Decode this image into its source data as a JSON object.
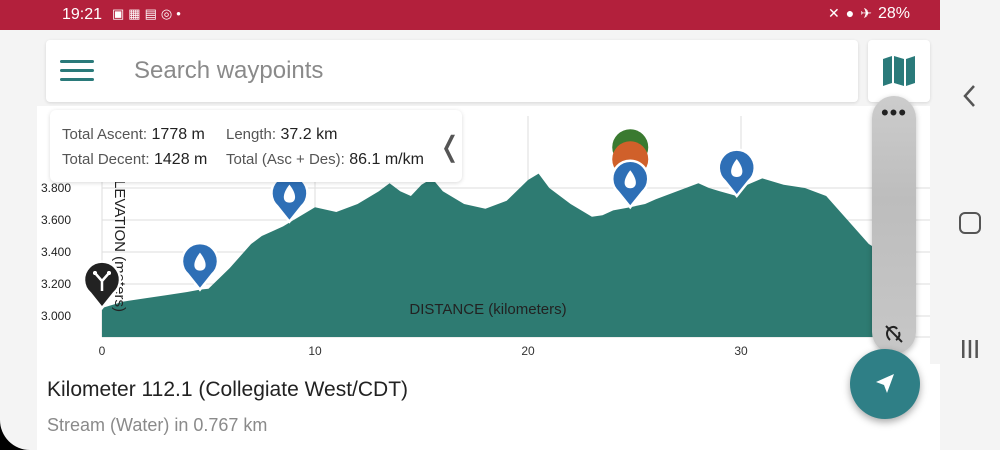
{
  "status_bar": {
    "time": "19:21",
    "left_icons": [
      "photo-icon",
      "grid-icon",
      "chat-icon",
      "whatsapp-icon",
      "dot-icon"
    ],
    "right_icons": [
      "mute-icon",
      "location-icon",
      "airplane-icon"
    ],
    "battery": "28%"
  },
  "search": {
    "placeholder": "Search waypoints"
  },
  "stats": {
    "ascent_label": "Total Ascent:",
    "ascent_value": "1778 m",
    "length_label": "Length:",
    "length_value": "37.2 km",
    "descent_label": "Total Decent:",
    "descent_value": "1428 m",
    "total_label": "Total (Asc + Des):",
    "total_value": "86.1 m/km"
  },
  "waypoint": {
    "title": "Kilometer 112.1 (Collegiate West/CDT)",
    "subtitle": "Stream (Water) in 0.767 km"
  },
  "colors": {
    "status_bar": "#b3203c",
    "accent": "#2a7a7a",
    "profile_fill": "#2e7b72",
    "water_pin": "#2e6fb6",
    "junction_pin": "#222222",
    "green_marker": "#3a7a30",
    "orange_marker": "#d0602a"
  },
  "chart_data": {
    "type": "area",
    "xlabel": "DISTANCE (kilometers)",
    "ylabel": "ELEVATION (meters)",
    "x_ticks": [
      0,
      10,
      20,
      30
    ],
    "y_ticks": [
      "3.000",
      "3.200",
      "3.400",
      "3.600",
      "3.800"
    ],
    "xlim": [
      0,
      37.2
    ],
    "ylim": [
      2870,
      4350
    ],
    "series": [
      {
        "x": [
          0,
          1,
          2,
          3,
          4,
          4.6,
          5,
          6,
          7,
          7.5,
          8,
          8.5,
          9,
          10,
          11,
          12,
          13,
          13.5,
          14,
          14.5,
          15,
          15.5,
          16,
          17,
          18,
          19,
          20,
          20.5,
          21,
          22,
          23,
          23.5,
          24,
          24.8,
          25.5,
          26,
          27,
          28,
          28.5,
          29,
          29.8,
          30.3,
          31,
          32,
          33,
          34,
          35,
          36,
          37.2
        ],
        "y": [
          3050,
          3090,
          3110,
          3130,
          3150,
          3165,
          3170,
          3300,
          3450,
          3500,
          3530,
          3560,
          3600,
          3680,
          3650,
          3700,
          3780,
          3830,
          3780,
          3750,
          3820,
          3860,
          3780,
          3700,
          3670,
          3720,
          3850,
          3890,
          3800,
          3700,
          3620,
          3630,
          3660,
          3680,
          3700,
          3730,
          3780,
          3830,
          3800,
          3780,
          3750,
          3820,
          3860,
          3820,
          3800,
          3750,
          3600,
          3450,
          3350
        ]
      }
    ],
    "markers": [
      {
        "type": "junction-icon",
        "x": 0,
        "elevation": 3050
      },
      {
        "type": "water-icon",
        "x": 4.6,
        "elevation": 3165
      },
      {
        "type": "water-icon",
        "x": 8.8,
        "elevation": 3590
      },
      {
        "type": "multi-icon",
        "x": 24.8,
        "elevation": 3680
      },
      {
        "type": "water-icon",
        "x": 29.8,
        "elevation": 3750
      },
      {
        "type": "water-icon",
        "x": 37.2,
        "elevation": 3350
      }
    ],
    "grid": true
  }
}
